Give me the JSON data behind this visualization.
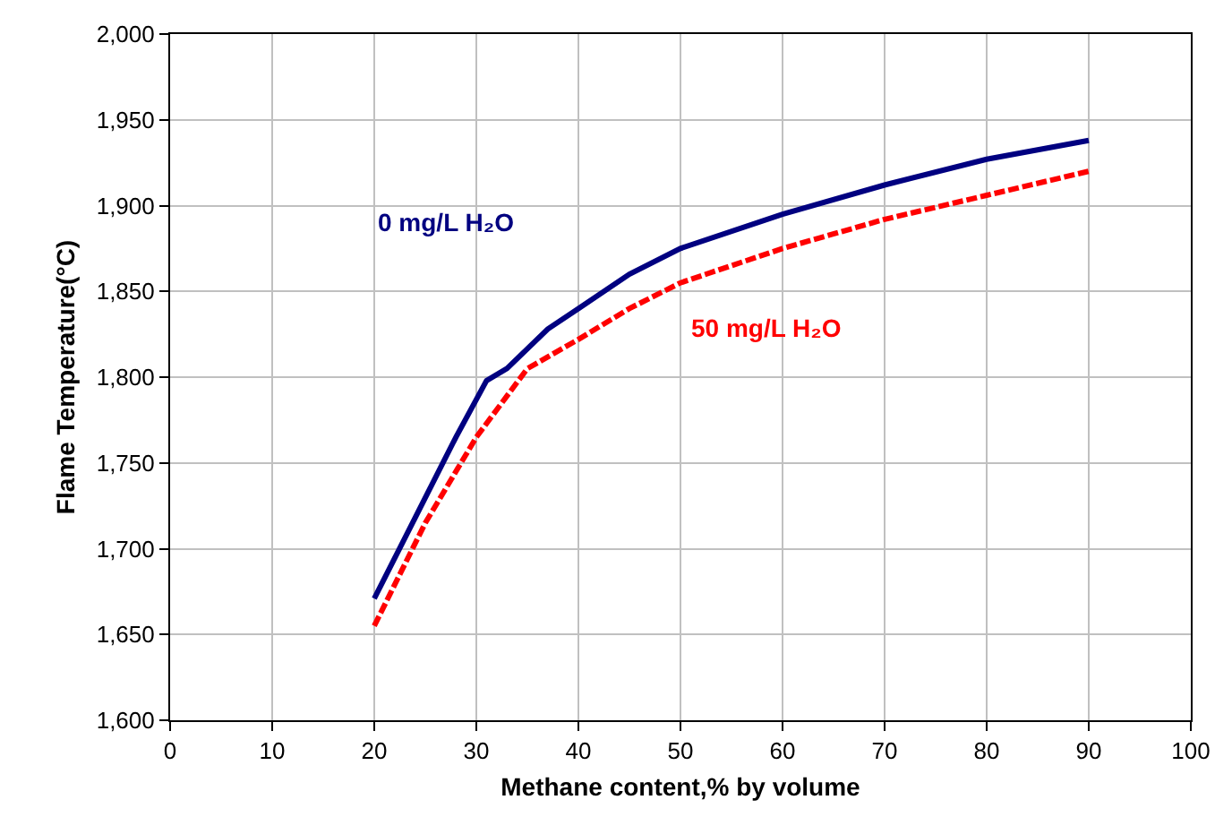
{
  "chart_data": {
    "type": "line",
    "xlabel": "Methane content,% by volume",
    "ylabel": "Flame Temperature(°C)",
    "xlim": [
      0,
      100
    ],
    "xticks": [
      0,
      10,
      20,
      30,
      40,
      50,
      60,
      70,
      80,
      90,
      100
    ],
    "ylim": [
      1600,
      2000
    ],
    "yticks": [
      {
        "value": 1600,
        "label": "1,600"
      },
      {
        "value": 1650,
        "label": "1,650"
      },
      {
        "value": 1700,
        "label": "1,700"
      },
      {
        "value": 1750,
        "label": "1,750"
      },
      {
        "value": 1800,
        "label": "1,800"
      },
      {
        "value": 1850,
        "label": "1,850"
      },
      {
        "value": 1900,
        "label": "1,900"
      },
      {
        "value": 1950,
        "label": "1,950"
      },
      {
        "value": 2000,
        "label": "2,000"
      }
    ],
    "grid": true,
    "legend": false,
    "marker": "none",
    "series": [
      {
        "name": "0 mg/L H₂O",
        "color": "#000080",
        "line_style": "solid",
        "x": [
          20,
          24,
          28,
          31,
          33,
          37,
          40,
          45,
          50,
          60,
          70,
          80,
          90
        ],
        "values": [
          1671,
          1718,
          1765,
          1798,
          1805,
          1828,
          1840,
          1860,
          1875,
          1895,
          1912,
          1927,
          1938
        ]
      },
      {
        "name": "50 mg/L H₂O",
        "color": "#ff0000",
        "line_style": "dashed",
        "x": [
          20,
          25,
          30,
          35,
          40,
          45,
          50,
          60,
          70,
          80,
          90
        ],
        "values": [
          1655,
          1715,
          1765,
          1805,
          1822,
          1840,
          1855,
          1875,
          1892,
          1906,
          1920
        ]
      }
    ]
  }
}
